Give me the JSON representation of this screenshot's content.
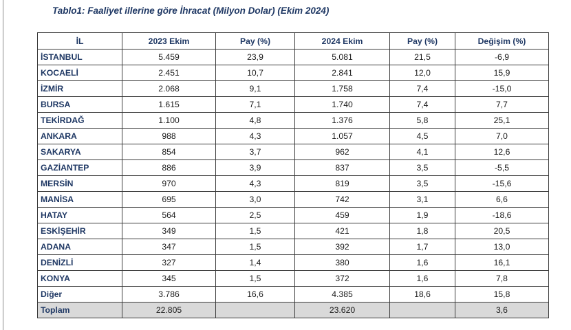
{
  "title": "Tablo1: Faaliyet illerine göre İhracat (Milyon Dolar) (Ekim 2024)",
  "columns": [
    "İL",
    "2023 Ekim",
    "Pay  (%)",
    "2024 Ekim",
    "Pay  (%)",
    "Değişim (%)"
  ],
  "rows": [
    {
      "il": "İSTANBUL",
      "y2023": "5.459",
      "pay2023": "23,9",
      "y2024": "5.081",
      "pay2024": "21,5",
      "degisim": "-6,9"
    },
    {
      "il": "KOCAELİ",
      "y2023": "2.451",
      "pay2023": "10,7",
      "y2024": "2.841",
      "pay2024": "12,0",
      "degisim": "15,9"
    },
    {
      "il": "İZMİR",
      "y2023": "2.068",
      "pay2023": "9,1",
      "y2024": "1.758",
      "pay2024": "7,4",
      "degisim": "-15,0"
    },
    {
      "il": "BURSA",
      "y2023": "1.615",
      "pay2023": "7,1",
      "y2024": "1.740",
      "pay2024": "7,4",
      "degisim": "7,7"
    },
    {
      "il": "TEKİRDAĞ",
      "y2023": "1.100",
      "pay2023": "4,8",
      "y2024": "1.376",
      "pay2024": "5,8",
      "degisim": "25,1"
    },
    {
      "il": "ANKARA",
      "y2023": "988",
      "pay2023": "4,3",
      "y2024": "1.057",
      "pay2024": "4,5",
      "degisim": "7,0"
    },
    {
      "il": "SAKARYA",
      "y2023": "854",
      "pay2023": "3,7",
      "y2024": "962",
      "pay2024": "4,1",
      "degisim": "12,6"
    },
    {
      "il": "GAZİANTEP",
      "y2023": "886",
      "pay2023": "3,9",
      "y2024": "837",
      "pay2024": "3,5",
      "degisim": "-5,5"
    },
    {
      "il": "MERSİN",
      "y2023": "970",
      "pay2023": "4,3",
      "y2024": "819",
      "pay2024": "3,5",
      "degisim": "-15,6"
    },
    {
      "il": "MANİSA",
      "y2023": "695",
      "pay2023": "3,0",
      "y2024": "742",
      "pay2024": "3,1",
      "degisim": "6,6"
    },
    {
      "il": "HATAY",
      "y2023": "564",
      "pay2023": "2,5",
      "y2024": "459",
      "pay2024": "1,9",
      "degisim": "-18,6"
    },
    {
      "il": "ESKİŞEHİR",
      "y2023": "349",
      "pay2023": "1,5",
      "y2024": "421",
      "pay2024": "1,8",
      "degisim": "20,5"
    },
    {
      "il": "ADANA",
      "y2023": "347",
      "pay2023": "1,5",
      "y2024": "392",
      "pay2024": "1,7",
      "degisim": "13,0"
    },
    {
      "il": "DENİZLİ",
      "y2023": "327",
      "pay2023": "1,4",
      "y2024": "380",
      "pay2024": "1,6",
      "degisim": "16,1"
    },
    {
      "il": "KONYA",
      "y2023": "345",
      "pay2023": "1,5",
      "y2024": "372",
      "pay2024": "1,6",
      "degisim": "7,8"
    },
    {
      "il": "Diğer",
      "y2023": "3.786",
      "pay2023": "16,6",
      "y2024": "4.385",
      "pay2024": "18,6",
      "degisim": "15,8"
    }
  ],
  "total": {
    "il": "Toplam",
    "y2023": "22.805",
    "pay2023": "",
    "y2024": "23.620",
    "pay2024": "",
    "degisim": "3,6"
  },
  "colors": {
    "header_text": "#1f3864",
    "total_bg": "#d9d9d9"
  }
}
